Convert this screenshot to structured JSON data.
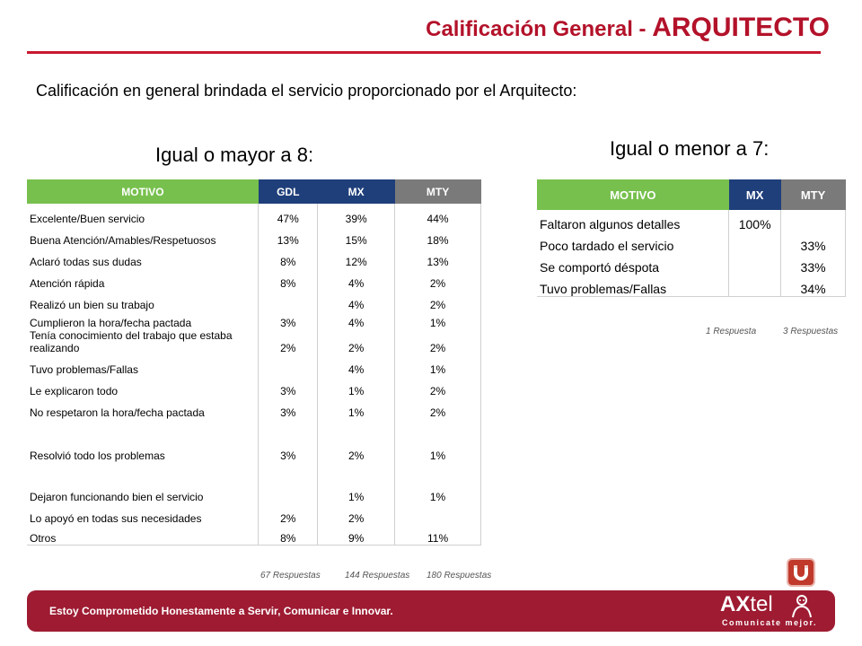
{
  "header": {
    "title_part1": "Calificación General - ",
    "title_part2": "ARQUITECTO",
    "subtitle": "Calificación en general brindada el servicio proporcionado por el Arquitecto:"
  },
  "left": {
    "heading": "Igual o mayor a 8:",
    "columns": [
      "MOTIVO",
      "GDL",
      "MX",
      "MTY"
    ],
    "rows": [
      {
        "motivo": "Excelente/Buen servicio",
        "gdl": "47%",
        "mx": "39%",
        "mty": "44%"
      },
      {
        "motivo": "Buena Atención/Amables/Respetuosos",
        "gdl": "13%",
        "mx": "15%",
        "mty": "18%"
      },
      {
        "motivo": "Aclaró todas sus dudas",
        "gdl": "8%",
        "mx": "12%",
        "mty": "13%"
      },
      {
        "motivo": "Atención rápida",
        "gdl": "8%",
        "mx": "4%",
        "mty": "2%"
      },
      {
        "motivo": "Realizó un bien su trabajo",
        "gdl": "",
        "mx": "4%",
        "mty": "2%"
      },
      {
        "motivo": "Cumplieron la hora/fecha pactada",
        "gdl": "3%",
        "mx": "4%",
        "mty": "1%"
      },
      {
        "motivo": "Tenía conocimiento del trabajo que estaba realizando",
        "gdl": "2%",
        "mx": "2%",
        "mty": "2%"
      },
      {
        "motivo": "Tuvo problemas/Fallas",
        "gdl": "",
        "mx": "4%",
        "mty": "1%"
      },
      {
        "motivo": "Le explicaron todo",
        "gdl": "3%",
        "mx": "1%",
        "mty": "2%"
      },
      {
        "motivo": "No respetaron la hora/fecha pactada",
        "gdl": "3%",
        "mx": "1%",
        "mty": "2%"
      },
      {
        "motivo": "Resolvió todo los problemas",
        "gdl": "3%",
        "mx": "2%",
        "mty": "1%"
      },
      {
        "motivo": "Dejaron funcionando bien el servicio",
        "gdl": "",
        "mx": "1%",
        "mty": "1%"
      },
      {
        "motivo": "Lo apoyó en todas sus necesidades",
        "gdl": "2%",
        "mx": "2%",
        "mty": ""
      },
      {
        "motivo": "Otros",
        "gdl": "8%",
        "mx": "9%",
        "mty": "11%"
      }
    ],
    "responses": [
      "67 Respuestas",
      "144 Respuestas",
      "180 Respuestas"
    ]
  },
  "right": {
    "heading": "Igual o menor a 7:",
    "columns": [
      "MOTIVO",
      "MX",
      "MTY"
    ],
    "rows": [
      {
        "motivo": "Faltaron algunos detalles",
        "mx": "100%",
        "mty": ""
      },
      {
        "motivo": "Poco tardado el servicio",
        "mx": "",
        "mty": "33%"
      },
      {
        "motivo": "Se comportó déspota",
        "mx": "",
        "mty": "33%"
      },
      {
        "motivo": "Tuvo problemas/Fallas",
        "mx": "",
        "mty": "34%"
      }
    ],
    "responses": [
      "1 Respuesta",
      "3 Respuestas"
    ]
  },
  "footer": {
    "slogan": "Estoy Comprometido Honestamente a Servir, Comunicar e Innovar.",
    "logo_word_bold": "AX",
    "logo_word_rest": "tel",
    "logo_tagline": "Comunicate mejor."
  },
  "colors": {
    "title_red": "#b3122a",
    "header_green": "#77c04d",
    "header_blue": "#1f3f7a",
    "header_gray": "#7a7a7a",
    "footer_red": "#9e1b32"
  },
  "icons": [
    "u-magnet-icon",
    "axtel-figure-icon"
  ]
}
